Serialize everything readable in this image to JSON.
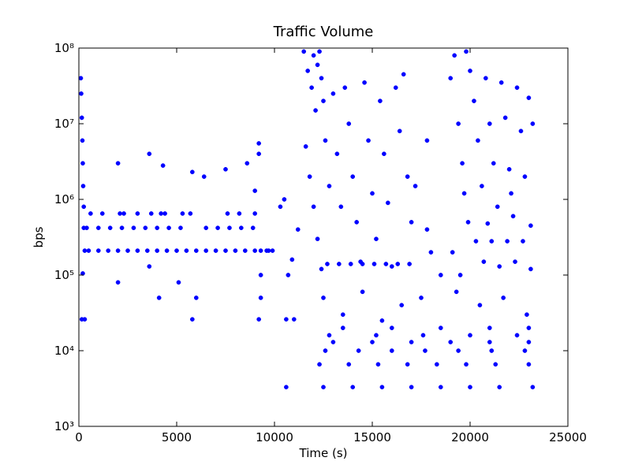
{
  "chart_data": {
    "type": "scatter",
    "title": "Traffic Volume",
    "x_label": "Time (s)",
    "y_label": "bps",
    "color": "#0000ff",
    "yscale": "log",
    "xlim": [
      0,
      25000
    ],
    "xticks": [
      0,
      5000,
      10000,
      15000,
      20000,
      25000
    ],
    "ylim": [
      1000,
      100000000
    ],
    "yticks": [
      {
        "value": 1000,
        "label": "10³"
      },
      {
        "value": 10000,
        "label": "10⁴"
      },
      {
        "value": 100000,
        "label": "10⁵"
      },
      {
        "value": 1000000,
        "label": "10⁶"
      },
      {
        "value": 10000000,
        "label": "10⁷"
      },
      {
        "value": 100000000,
        "label": "10⁸"
      }
    ],
    "x": [
      100,
      120,
      150,
      180,
      200,
      220,
      250,
      150,
      300,
      200,
      250,
      300,
      500,
      1000,
      1500,
      2000,
      2500,
      3000,
      3500,
      4000,
      4500,
      5000,
      5500,
      6000,
      6500,
      7000,
      7500,
      8000,
      8500,
      9000,
      9300,
      9600,
      9900,
      400,
      1000,
      1600,
      2200,
      2800,
      3400,
      4000,
      4600,
      5200,
      6500,
      7100,
      7700,
      8300,
      8900,
      600,
      1200,
      2100,
      2300,
      3000,
      3700,
      4200,
      4400,
      5300,
      5700,
      7600,
      8200,
      9000,
      2000,
      3600,
      4300,
      5800,
      6400,
      7500,
      8600,
      9200,
      9200,
      2000,
      3600,
      4100,
      5100,
      5800,
      6000,
      9200,
      9300,
      9300,
      9000,
      10300,
      10500,
      10700,
      10600,
      11000,
      10600,
      11200,
      10900,
      9700,
      11500,
      11700,
      11900,
      12000,
      12100,
      12200,
      12300,
      12400,
      12500,
      11600,
      11800,
      12000,
      12200,
      12400,
      12600,
      12800,
      13000,
      13200,
      13400,
      13600,
      13800,
      14000,
      14200,
      14400,
      14600,
      14800,
      15000,
      15200,
      15400,
      15600,
      15800,
      16000,
      16200,
      16400,
      16600,
      16800,
      17000,
      12700,
      13300,
      13900,
      14500,
      15100,
      15700,
      16300,
      16900,
      12500,
      13500,
      14500,
      15500,
      16500,
      17500,
      17200,
      17800,
      18000,
      18500,
      17800,
      12500,
      14000,
      15500,
      17000,
      18500,
      20000,
      21500,
      23200,
      12300,
      13800,
      15300,
      16800,
      18300,
      19800,
      21300,
      23000,
      12600,
      14300,
      16000,
      17700,
      19400,
      21100,
      22800,
      13000,
      15000,
      17000,
      19000,
      21000,
      23000,
      12800,
      15200,
      17600,
      20000,
      22400,
      13500,
      16000,
      18500,
      21000,
      23000,
      19000,
      19200,
      19400,
      19600,
      19800,
      20000,
      20200,
      20400,
      20600,
      20800,
      21000,
      21200,
      21400,
      21600,
      21800,
      22000,
      22200,
      22400,
      22600,
      22800,
      23000,
      23200,
      19100,
      19500,
      19900,
      20300,
      20700,
      21100,
      21500,
      21900,
      22300,
      22700,
      23100,
      19300,
      20500,
      21700,
      22900,
      19700,
      20900,
      22100,
      23100
    ],
    "values": [
      40000000,
      25000000,
      12000000,
      6000000,
      3000000,
      1500000,
      800000,
      26000,
      26000,
      105000,
      420000,
      210000,
      210000,
      210000,
      210000,
      210000,
      210000,
      210000,
      210000,
      210000,
      210000,
      210000,
      210000,
      210000,
      210000,
      210000,
      210000,
      210000,
      210000,
      210000,
      210000,
      210000,
      210000,
      420000,
      420000,
      420000,
      420000,
      420000,
      420000,
      420000,
      420000,
      420000,
      420000,
      420000,
      420000,
      420000,
      420000,
      650000,
      650000,
      650000,
      650000,
      650000,
      650000,
      650000,
      650000,
      650000,
      650000,
      650000,
      650000,
      650000,
      3000000,
      4000000,
      2800000,
      2300000,
      2000000,
      2500000,
      3000000,
      5500000,
      4000000,
      80000,
      130000,
      50000,
      80000,
      26000,
      50000,
      26000,
      50000,
      100000,
      1300000,
      800000,
      1000000,
      100000,
      26000,
      26000,
      3300,
      400000,
      160000,
      210000,
      90000000,
      50000000,
      30000000,
      80000000,
      15000000,
      60000000,
      90000000,
      40000000,
      20000000,
      5000000,
      2000000,
      800000,
      300000,
      120000,
      6000000,
      1500000,
      25000000,
      4000000,
      800000,
      30000000,
      10000000,
      2000000,
      500000,
      150000,
      35000000,
      6000000,
      1200000,
      300000,
      20000000,
      4000000,
      900000,
      130000,
      30000000,
      8000000,
      45000000,
      2000000,
      500000,
      140000,
      140000,
      140000,
      140000,
      140000,
      140000,
      140000,
      140000,
      50000,
      30000,
      60000,
      25000,
      40000,
      50000,
      1500000,
      400000,
      200000,
      100000,
      6000000,
      3300,
      3300,
      3300,
      3300,
      3300,
      3300,
      3300,
      3300,
      6600,
      6600,
      6600,
      6600,
      6600,
      6600,
      6600,
      6600,
      10000,
      10000,
      10000,
      10000,
      10000,
      10000,
      10000,
      13000,
      13000,
      13000,
      13000,
      13000,
      13000,
      16000,
      16000,
      16000,
      16000,
      16000,
      20000,
      20000,
      20000,
      20000,
      20000,
      40000000,
      80000000,
      10000000,
      3000000,
      90000000,
      50000000,
      20000000,
      6000000,
      1500000,
      40000000,
      10000000,
      3000000,
      800000,
      35000000,
      12000000,
      2500000,
      600000,
      30000000,
      8000000,
      2000000,
      22000000,
      10000000,
      200000,
      100000,
      500000,
      280000,
      150000,
      280000,
      130000,
      280000,
      150000,
      280000,
      120000,
      60000,
      40000,
      50000,
      30000,
      1200000,
      480000,
      1200000,
      450000
    ]
  }
}
